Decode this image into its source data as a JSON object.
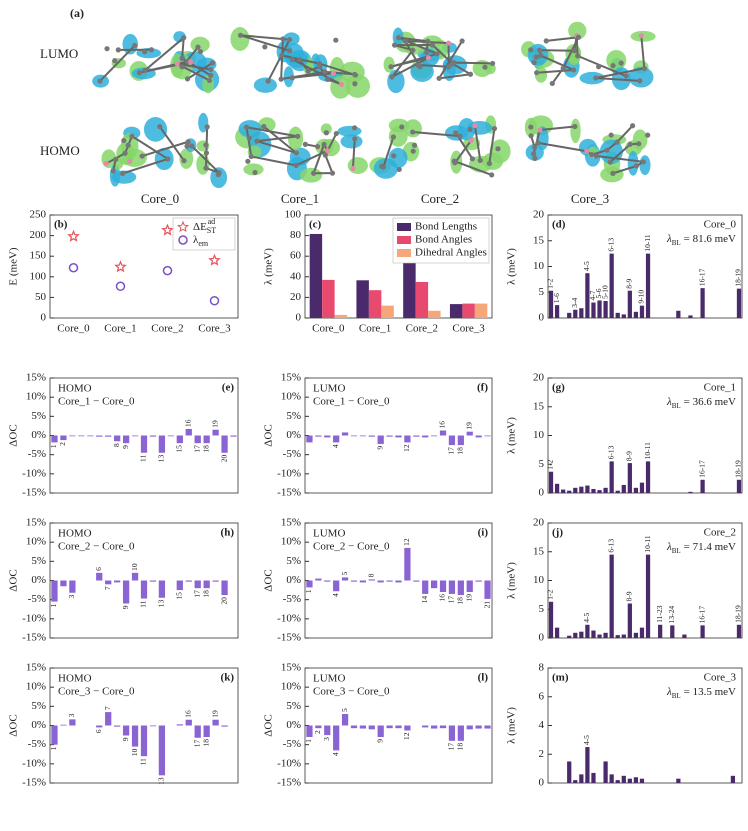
{
  "figure_a": {
    "label": "(a)",
    "rows": [
      "LUMO",
      "HOMO"
    ],
    "columns": [
      "Core_0",
      "Core_1",
      "Core_2",
      "Core_3"
    ]
  },
  "chart_data": [
    {
      "type": "scatter",
      "panel_label": "(b)",
      "ylabel": "E (meV)",
      "categories": [
        "Core_0",
        "Core_1",
        "Core_2",
        "Core_3"
      ],
      "series": [
        {
          "name": "ΔE",
          "sub": "ST",
          "sup": "ad",
          "color": "#e8505b",
          "marker": "star",
          "values": [
            198,
            124,
            213,
            140
          ]
        },
        {
          "name": "λ",
          "sub": "em",
          "color": "#7b4fc4",
          "marker": "circle",
          "values": [
            122,
            77,
            115,
            42
          ]
        }
      ],
      "ylim": [
        0,
        250
      ],
      "yticks": [
        0,
        50,
        100,
        150,
        200,
        250
      ],
      "legend": "upper right",
      "category_position": "axis"
    },
    {
      "type": "bar",
      "panel_label": "(c)",
      "ylabel": "λ (meV)",
      "categories": [
        "Core_0",
        "Core_1",
        "Core_2",
        "Core_3"
      ],
      "series": [
        {
          "name": "Bond Lengths",
          "color": "#4b2a6b",
          "values": [
            81.6,
            36.6,
            71.4,
            13.5
          ]
        },
        {
          "name": "Bond Angles",
          "color": "#e84a6f",
          "values": [
            37,
            27,
            35,
            14
          ]
        },
        {
          "name": "Dihedral Angles",
          "color": "#f5a77a",
          "values": [
            3,
            12,
            7,
            14
          ]
        }
      ],
      "ylim": [
        0,
        100
      ],
      "yticks": [
        0,
        20,
        40,
        60,
        80,
        100
      ],
      "legend": "upper right",
      "category_position": "axis"
    },
    {
      "type": "bar",
      "panel_label": "(d)",
      "ylabel": "λ (meV)",
      "annotation": {
        "title": "Core_0",
        "symbol": "λ",
        "sub": "BL",
        "text": "= 81.6 meV"
      },
      "categories": [
        "1-2",
        "1-6",
        null,
        null,
        "3-4",
        null,
        "4-5",
        "4-7",
        "5-6",
        "5-10",
        "6-13",
        null,
        null,
        "8-9",
        null,
        "9-10",
        "10-11",
        null,
        null,
        null,
        null,
        null,
        null,
        null,
        null,
        "16-17",
        null,
        null,
        null,
        null,
        null,
        "18-19"
      ],
      "values": [
        5.3,
        2.5,
        null,
        1.0,
        1.6,
        1.9,
        8.7,
        3.0,
        3.4,
        3.3,
        12.5,
        1.0,
        0.7,
        5.3,
        1.2,
        2.4,
        12.5,
        null,
        null,
        null,
        null,
        1.4,
        null,
        0.5,
        null,
        5.8,
        null,
        null,
        null,
        null,
        null,
        5.7
      ],
      "color": "#4b2a6b",
      "ylim": [
        0,
        20
      ],
      "yticks": [
        0,
        5,
        10,
        15,
        20
      ],
      "category_position": "bar"
    },
    {
      "type": "bar",
      "panel_label": "(e)",
      "ylabel": "ΔOC",
      "note": [
        "HOMO",
        "Core_1 − Core_0"
      ],
      "categories": [
        "1",
        "2",
        null,
        null,
        null,
        null,
        null,
        "8",
        "9",
        null,
        "11",
        null,
        "13",
        null,
        "15",
        "16",
        "17",
        "18",
        "19",
        "20",
        null
      ],
      "values": [
        -1.8,
        -1.2,
        -0.2,
        -0.2,
        -0.2,
        -0.3,
        -0.3,
        -1.5,
        -2.0,
        -0.2,
        -4.5,
        -0.3,
        -4.5,
        -0.2,
        -2.0,
        1.7,
        -2.0,
        -2.0,
        1.5,
        -4.5,
        -0.3
      ],
      "color": "#8b64d4",
      "ylim": [
        -15,
        15
      ],
      "yticks": [
        {
          "value": 15,
          "label": "15%"
        },
        {
          "value": 10,
          "label": "10%"
        },
        {
          "value": 5,
          "label": "5%"
        },
        {
          "value": 0,
          "label": "0%"
        },
        {
          "value": -5,
          "label": "-5%"
        },
        {
          "value": -10,
          "label": "-10%"
        },
        {
          "value": -15,
          "label": "-15%"
        }
      ],
      "category_position": "bar"
    },
    {
      "type": "bar",
      "panel_label": "(f)",
      "ylabel": "ΔOC",
      "note": [
        "LUMO",
        "Core_1 − Core_0"
      ],
      "categories": [
        null,
        null,
        null,
        "4",
        null,
        null,
        null,
        null,
        "9",
        null,
        null,
        "12",
        null,
        null,
        null,
        "16",
        "17",
        "18",
        "19",
        null,
        null
      ],
      "values": [
        -1.8,
        -0.3,
        -0.5,
        -1.8,
        0.8,
        -0.2,
        -0.2,
        -0.3,
        -2.2,
        -0.3,
        -0.5,
        -1.8,
        -0.3,
        -0.5,
        -0.2,
        1.3,
        -2.5,
        -2.5,
        1.0,
        -0.5,
        -0.2
      ],
      "color": "#8b64d4",
      "ylim": [
        -15,
        15
      ],
      "yticks": [
        {
          "value": 15,
          "label": "15%"
        },
        {
          "value": 10,
          "label": "10%"
        },
        {
          "value": 5,
          "label": "5%"
        },
        {
          "value": 0,
          "label": "0%"
        },
        {
          "value": -5,
          "label": "-5%"
        },
        {
          "value": -10,
          "label": "-10%"
        },
        {
          "value": -15,
          "label": "-15%"
        }
      ],
      "category_position": "bar"
    },
    {
      "type": "bar",
      "panel_label": "(g)",
      "ylabel": "λ (meV)",
      "annotation": {
        "title": "Core_1",
        "symbol": "λ",
        "sub": "BL",
        "text": "= 36.6 meV"
      },
      "categories": [
        "1-2",
        null,
        null,
        null,
        null,
        null,
        null,
        null,
        null,
        null,
        "6-13",
        null,
        null,
        "8-9",
        null,
        null,
        "10-11",
        null,
        null,
        null,
        null,
        null,
        null,
        null,
        null,
        "16-17",
        null,
        null,
        null,
        null,
        null,
        "18-19"
      ],
      "values": [
        3.7,
        1.6,
        0.6,
        0.4,
        0.9,
        1.1,
        1.3,
        0.7,
        0.5,
        0.9,
        5.5,
        0.4,
        1.4,
        5.2,
        0.9,
        1.8,
        5.5,
        null,
        null,
        null,
        null,
        null,
        null,
        0.2,
        null,
        2.3,
        null,
        null,
        null,
        null,
        null,
        2.3
      ],
      "color": "#4b2a6b",
      "ylim": [
        0,
        20
      ],
      "yticks": [
        0,
        5,
        10,
        15,
        20
      ],
      "category_position": "bar"
    },
    {
      "type": "bar",
      "panel_label": "(h)",
      "ylabel": "ΔOC",
      "note": [
        "HOMO",
        "Core_2 − Core_0"
      ],
      "categories": [
        "1",
        null,
        "3",
        null,
        null,
        "6",
        "7",
        null,
        "9",
        "10",
        "11",
        null,
        "13",
        null,
        "15",
        null,
        "17",
        "18",
        null,
        "20",
        null
      ],
      "values": [
        -5.5,
        -1.5,
        -3.2,
        null,
        null,
        2.0,
        -1.0,
        -0.5,
        -6.0,
        2.0,
        -4.7,
        -0.3,
        -4.5,
        null,
        -2.5,
        -0.3,
        -2.0,
        -2.0,
        -0.3,
        -3.8,
        null
      ],
      "color": "#8b64d4",
      "ylim": [
        -15,
        15
      ],
      "yticks": [
        {
          "value": 15,
          "label": "15%"
        },
        {
          "value": 10,
          "label": "10%"
        },
        {
          "value": 5,
          "label": "5%"
        },
        {
          "value": 0,
          "label": "0%"
        },
        {
          "value": -5,
          "label": "-5%"
        },
        {
          "value": -10,
          "label": "-10%"
        },
        {
          "value": -15,
          "label": "-15%"
        }
      ],
      "category_position": "bar"
    },
    {
      "type": "bar",
      "panel_label": "(i)",
      "ylabel": "ΔOC",
      "note": [
        "LUMO",
        "Core_2 − Core_0"
      ],
      "categories": [
        "1",
        null,
        null,
        "4",
        "5",
        null,
        null,
        "8",
        null,
        null,
        null,
        "12",
        null,
        "14",
        null,
        "16",
        "17",
        "18",
        "19",
        null,
        "21"
      ],
      "values": [
        -1.8,
        0.5,
        -0.3,
        -2.8,
        0.8,
        -0.3,
        -0.5,
        0.3,
        -0.5,
        -0.3,
        -0.5,
        8.5,
        -0.3,
        -3.5,
        -2.0,
        -3.0,
        -3.5,
        -3.8,
        -3.0,
        -0.3,
        -4.8
      ],
      "color": "#8b64d4",
      "ylim": [
        -15,
        15
      ],
      "yticks": [
        {
          "value": 15,
          "label": "15%"
        },
        {
          "value": 10,
          "label": "10%"
        },
        {
          "value": 5,
          "label": "5%"
        },
        {
          "value": 0,
          "label": "0%"
        },
        {
          "value": -5,
          "label": "-5%"
        },
        {
          "value": -10,
          "label": "-10%"
        },
        {
          "value": -15,
          "label": "-15%"
        }
      ],
      "category_position": "bar"
    },
    {
      "type": "bar",
      "panel_label": "(j)",
      "ylabel": "λ (meV)",
      "annotation": {
        "title": "Core_2",
        "symbol": "λ",
        "sub": "BL",
        "text": "= 71.4 meV"
      },
      "categories": [
        "1-2",
        null,
        null,
        null,
        null,
        null,
        "4-5",
        null,
        null,
        null,
        "6-13",
        null,
        null,
        "8-9",
        null,
        null,
        "10-11",
        null,
        "11-23",
        null,
        "13-24",
        null,
        null,
        null,
        null,
        "16-17",
        null,
        null,
        null,
        null,
        null,
        "18-19"
      ],
      "values": [
        6.3,
        1.8,
        null,
        0.4,
        0.9,
        1.1,
        2.3,
        1.3,
        0.6,
        0.9,
        14.5,
        0.5,
        0.6,
        6.0,
        0.9,
        1.8,
        14.5,
        null,
        2.3,
        null,
        2.2,
        null,
        0.6,
        null,
        null,
        2.2,
        null,
        null,
        null,
        null,
        null,
        2.3
      ],
      "color": "#4b2a6b",
      "ylim": [
        0,
        20
      ],
      "yticks": [
        0,
        5,
        10,
        15,
        20
      ],
      "category_position": "bar"
    },
    {
      "type": "bar",
      "panel_label": "(k)",
      "ylabel": "ΔOC",
      "note": [
        "HOMO",
        "Core_3 − Core_0"
      ],
      "categories": [
        "1",
        null,
        "3",
        null,
        null,
        "6",
        "7",
        null,
        "9",
        "10",
        "11",
        null,
        "13",
        null,
        null,
        "16",
        "17",
        "18",
        "19",
        null,
        null
      ],
      "values": [
        -5.0,
        0.2,
        1.6,
        null,
        null,
        -0.5,
        3.5,
        -0.3,
        -2.6,
        -5.5,
        -8.0,
        -0.2,
        -13.0,
        null,
        0.3,
        1.5,
        -3.2,
        -3.0,
        1.5,
        -0.3,
        null
      ],
      "color": "#8b64d4",
      "ylim": [
        -15,
        15
      ],
      "yticks": [
        {
          "value": 15,
          "label": "15%"
        },
        {
          "value": 10,
          "label": "10%"
        },
        {
          "value": 5,
          "label": "5%"
        },
        {
          "value": 0,
          "label": "0%"
        },
        {
          "value": -5,
          "label": "-5%"
        },
        {
          "value": -10,
          "label": "-10%"
        },
        {
          "value": -15,
          "label": "-15%"
        }
      ],
      "category_position": "bar"
    },
    {
      "type": "bar",
      "panel_label": "(l)",
      "ylabel": "ΔOC",
      "note": [
        "LUMO",
        "Core_3 − Core_0"
      ],
      "categories": [
        "1",
        "2",
        "3",
        "4",
        "5",
        null,
        null,
        null,
        "9",
        null,
        null,
        "12",
        null,
        null,
        null,
        null,
        "17",
        "18",
        null,
        null,
        null
      ],
      "values": [
        -3.0,
        -0.7,
        -2.5,
        -6.5,
        3.0,
        -0.7,
        -0.8,
        -1.0,
        -3.0,
        -0.7,
        -0.7,
        -1.3,
        null,
        -0.5,
        -0.8,
        -0.7,
        -4.0,
        -4.0,
        -1.0,
        -0.8,
        -0.8
      ],
      "color": "#8b64d4",
      "ylim": [
        -15,
        15
      ],
      "yticks": [
        {
          "value": 15,
          "label": "15%"
        },
        {
          "value": 10,
          "label": "10%"
        },
        {
          "value": 5,
          "label": "5%"
        },
        {
          "value": 0,
          "label": "0%"
        },
        {
          "value": -5,
          "label": "-5%"
        },
        {
          "value": -10,
          "label": "-10%"
        },
        {
          "value": -15,
          "label": "-15%"
        }
      ],
      "category_position": "bar"
    },
    {
      "type": "bar",
      "panel_label": "(m)",
      "ylabel": "λ (meV)",
      "annotation": {
        "title": "Core_3",
        "symbol": "λ",
        "sub": "BL",
        "text": "= 13.5 meV"
      },
      "categories": [
        null,
        null,
        null,
        null,
        null,
        null,
        "4-5",
        null,
        null,
        null,
        null,
        null,
        null,
        null,
        null,
        null,
        null,
        null,
        null,
        null,
        null,
        null,
        null,
        null,
        null,
        null,
        null,
        null,
        null,
        null,
        null,
        null
      ],
      "values": [
        null,
        null,
        null,
        1.5,
        0.2,
        0.6,
        2.5,
        0.7,
        null,
        1.5,
        0.6,
        0.2,
        0.5,
        0.3,
        0.4,
        0.3,
        null,
        null,
        null,
        null,
        null,
        0.3,
        null,
        null,
        null,
        null,
        null,
        null,
        null,
        null,
        0.5,
        null
      ],
      "color": "#4b2a6b",
      "ylim": [
        0,
        8
      ],
      "yticks": [
        0,
        2,
        4,
        6,
        8
      ],
      "category_position": "bar"
    }
  ]
}
